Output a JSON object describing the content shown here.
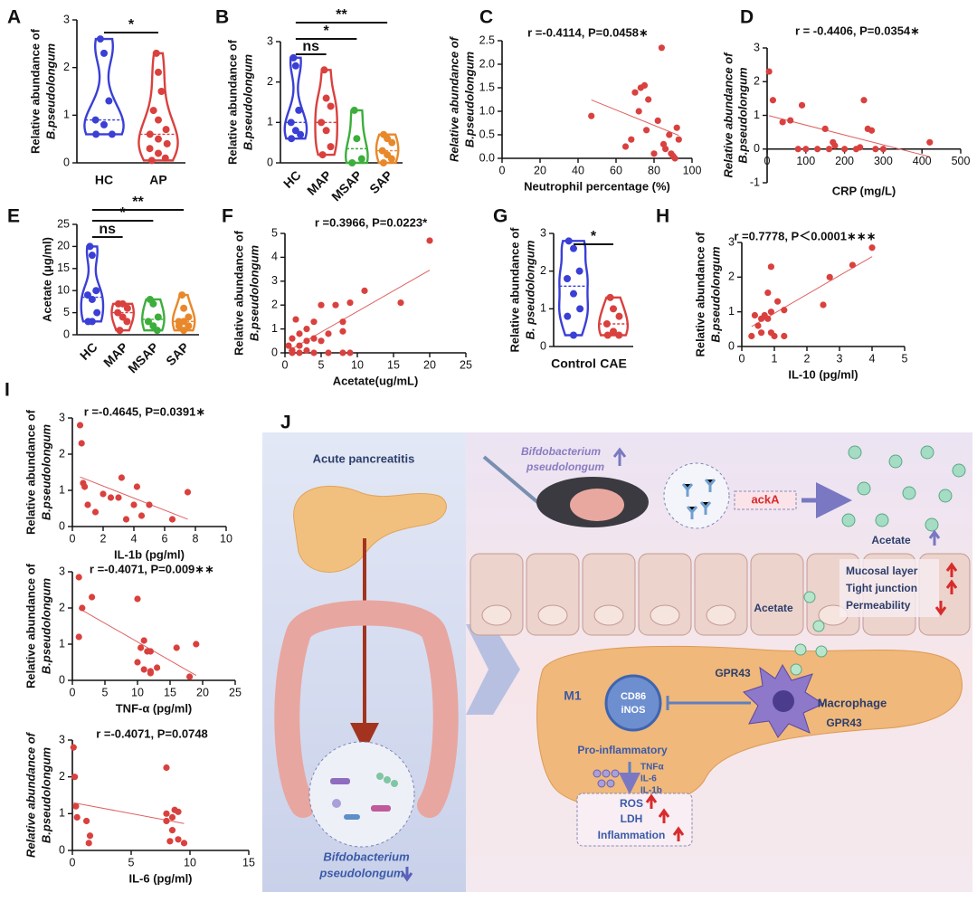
{
  "chart_data": [
    {
      "type": "violin",
      "label": "A",
      "ylabel": [
        "Relative abundance of",
        "B.pseudolongum"
      ],
      "categories": [
        "HC",
        "AP"
      ],
      "colors": [
        "#3a3fd6",
        "#d9413e"
      ],
      "values": [
        [
          2.6,
          2.3,
          1.3,
          0.9,
          0.8,
          0.6,
          0.6
        ],
        [
          2.3,
          1.9,
          1.5,
          1.1,
          0.9,
          0.7,
          0.6,
          0.5,
          0.4,
          0.3,
          0.2,
          0.1,
          0.05
        ]
      ],
      "ylim": [
        0,
        3
      ],
      "yticks": [
        0,
        1,
        2,
        3
      ],
      "comparisons": [
        {
          "text": "*",
          "groups": [
            0,
            1
          ]
        }
      ]
    },
    {
      "type": "violin",
      "label": "B",
      "ylabel": [
        "Relative abundance of",
        "B.pseudolongum"
      ],
      "categories": [
        "HC",
        "MAP",
        "MSAP",
        "SAP"
      ],
      "colors": [
        "#3a3fd6",
        "#d9413e",
        "#3cae3c",
        "#e8882a"
      ],
      "values": [
        [
          2.6,
          2.4,
          1.3,
          1.0,
          0.8,
          0.7,
          0.6
        ],
        [
          2.3,
          1.6,
          1.4,
          1.0,
          0.8,
          0.4,
          0.2
        ],
        [
          1.3,
          0.6,
          0.1,
          0.0
        ],
        [
          0.7,
          0.6,
          0.5,
          0.3,
          0.2,
          0.1,
          0.0
        ]
      ],
      "ylim": [
        0,
        3
      ],
      "yticks": [
        0,
        1,
        2,
        3
      ],
      "comparisons": [
        {
          "text": "**",
          "groups": [
            0,
            3
          ]
        },
        {
          "text": "*",
          "groups": [
            0,
            2
          ]
        },
        {
          "text": "ns",
          "groups": [
            0,
            1
          ]
        }
      ]
    },
    {
      "type": "scatter",
      "label": "C",
      "title": "r =-0.4114, P=0.0458∗",
      "xlabel": "Neutrophil percentage (%)",
      "ylabel": [
        "Relative abundance of",
        "B.pseudolongum"
      ],
      "color": "#d9413e",
      "trendline": true,
      "x": [
        47,
        65,
        68,
        70,
        72,
        73,
        75,
        76,
        77,
        80,
        82,
        84,
        85,
        86,
        88,
        89,
        90,
        91,
        92,
        93
      ],
      "values": [
        0.9,
        0.25,
        0.4,
        1.4,
        1.0,
        1.5,
        1.55,
        0.6,
        1.25,
        0.1,
        0.8,
        2.35,
        0.3,
        0.2,
        0.5,
        0.1,
        0.05,
        0.0,
        0.65,
        0.4
      ],
      "xlim": [
        0,
        100
      ],
      "xticks": [
        0,
        20,
        40,
        60,
        80,
        100
      ],
      "ylim": [
        0,
        2.5
      ],
      "yticks": [
        {
          "value": 0,
          "label": "0.0"
        },
        0.5,
        {
          "value": 1,
          "label": "1.0"
        },
        1.5,
        {
          "value": 2,
          "label": "2.0"
        },
        2.5
      ]
    },
    {
      "type": "scatter",
      "label": "D",
      "title": "r = -0.4406, P=0.0354∗",
      "xlabel": "CRP (mg/L)",
      "ylabel": [
        "Relative abundance of",
        "B.pseudolongum"
      ],
      "color": "#d9413e",
      "trendline": true,
      "x": [
        5,
        15,
        40,
        60,
        80,
        90,
        100,
        130,
        150,
        160,
        170,
        175,
        200,
        230,
        240,
        250,
        260,
        270,
        280,
        300,
        420
      ],
      "values": [
        2.3,
        1.45,
        0.8,
        0.85,
        0.0,
        1.3,
        0.0,
        0.0,
        0.6,
        0.0,
        0.2,
        0.1,
        0.0,
        0.0,
        0.05,
        1.45,
        0.6,
        0.55,
        0.0,
        0.0,
        0.2
      ],
      "xlim": [
        0,
        500
      ],
      "xticks": [
        0,
        100,
        200,
        300,
        400,
        500
      ],
      "ylim": [
        -1,
        3
      ],
      "yticks": [
        -1,
        0,
        1,
        2,
        3
      ]
    },
    {
      "type": "violin",
      "label": "E",
      "ylabel": [
        "Acetate (μg/ml)"
      ],
      "categories": [
        "HC",
        "MAP",
        "MSAP",
        "SAP"
      ],
      "colors": [
        "#3a3fd6",
        "#d9413e",
        "#3cae3c",
        "#e8882a"
      ],
      "values": [
        [
          20,
          18,
          10,
          9,
          8,
          5,
          3,
          3
        ],
        [
          7,
          7,
          6,
          5,
          4,
          3,
          1
        ],
        [
          8,
          7,
          4,
          3,
          2,
          1
        ],
        [
          9,
          6,
          4,
          3,
          3,
          2,
          2,
          1
        ]
      ],
      "ylim": [
        0,
        25
      ],
      "yticks": [
        0,
        5,
        10,
        15,
        20,
        25
      ],
      "comparisons": [
        {
          "text": "**",
          "groups": [
            0,
            3
          ]
        },
        {
          "text": "*",
          "groups": [
            0,
            2
          ]
        },
        {
          "text": "ns",
          "groups": [
            0,
            1
          ]
        }
      ]
    },
    {
      "type": "scatter",
      "label": "F",
      "title": "r =0.3966, P=0.0223*",
      "xlabel": "Acetate(ug/mL)",
      "ylabel": [
        "Relative abundance of",
        "B.pseudolongum"
      ],
      "color": "#d9413e",
      "trendline": true,
      "x": [
        20,
        16,
        11,
        9,
        8,
        8,
        7,
        6,
        5,
        5,
        4,
        4,
        3,
        3,
        2,
        2,
        1.5,
        1,
        1,
        0.5,
        6,
        4,
        8,
        9,
        3,
        2,
        1
      ],
      "values": [
        4.7,
        2.1,
        2.6,
        2.1,
        1.3,
        0.9,
        2.0,
        0.8,
        2.0,
        0.5,
        1.3,
        0.6,
        1.0,
        0.5,
        0.8,
        0.3,
        1.4,
        0.6,
        0.1,
        0.3,
        0,
        0,
        0,
        0,
        0.1,
        0,
        0
      ],
      "xlim": [
        0,
        25
      ],
      "xticks": [
        0,
        5,
        10,
        15,
        20,
        25
      ],
      "ylim": [
        0,
        5
      ],
      "yticks": [
        0,
        1,
        2,
        3,
        4,
        5
      ]
    },
    {
      "type": "violin",
      "label": "G",
      "ylabel": [
        "Relative abundance of",
        "B. pseudolongum"
      ],
      "categories": [
        "Control",
        "CAE"
      ],
      "colors": [
        "#3a3fd6",
        "#d9413e"
      ],
      "values": [
        [
          2.8,
          2.6,
          2.0,
          1.8,
          1.4,
          1.0,
          0.8,
          0.3
        ],
        [
          1.3,
          1.0,
          0.8,
          0.6,
          0.4,
          0.3,
          0.3
        ]
      ],
      "ylim": [
        0,
        3
      ],
      "yticks": [
        0,
        1,
        2,
        3
      ],
      "comparisons": [
        {
          "text": "*",
          "groups": [
            0,
            1
          ]
        }
      ]
    },
    {
      "type": "scatter",
      "label": "H",
      "title": "r =0.7778, P＜0.0001∗∗∗",
      "xlabel": "IL-10 (pg/ml)",
      "ylabel": [
        "Relative abundance of",
        "B.pseudolongum"
      ],
      "color": "#d9413e",
      "trendline": true,
      "x": [
        4,
        3.4,
        2.7,
        2.5,
        1.3,
        1.1,
        0.9,
        0.9,
        0.8,
        0.8,
        0.7,
        0.6,
        0.5,
        0.4,
        0.3,
        0.9,
        1.0,
        1.3,
        0.6
      ],
      "values": [
        2.85,
        2.35,
        2.0,
        1.2,
        1.05,
        1.3,
        2.3,
        1.0,
        0.8,
        1.55,
        0.9,
        0.8,
        0.6,
        0.9,
        0.3,
        0.4,
        0.3,
        0.3,
        0.4
      ],
      "xlim": [
        0,
        5
      ],
      "xticks": [
        0,
        1,
        2,
        3,
        4,
        5
      ],
      "ylim": [
        0,
        3
      ],
      "yticks": [
        0,
        1,
        2,
        3
      ]
    },
    {
      "type": "scatter",
      "label": "I",
      "title": "r =-0.4645, P=0.0391∗",
      "xlabel": "IL-1b (pg/ml)",
      "ylabel": [
        "Relative abundance of",
        "B.pseudolongum"
      ],
      "color": "#d9413e",
      "trendline": true,
      "x": [
        0.5,
        0.6,
        0.7,
        0.8,
        1,
        1.5,
        2,
        2.5,
        3,
        3.2,
        3.5,
        4,
        4.2,
        4.5,
        5,
        6.5,
        7.5
      ],
      "values": [
        2.8,
        2.3,
        1.2,
        1.1,
        0.6,
        0.4,
        0.9,
        0.8,
        0.8,
        1.35,
        0.2,
        0.6,
        1.1,
        0.3,
        0.6,
        0.2,
        0.95
      ],
      "xlim": [
        0,
        10
      ],
      "xticks": [
        0,
        2,
        4,
        6,
        8,
        10
      ],
      "ylim": [
        0,
        3
      ],
      "yticks": [
        0,
        1,
        2,
        3
      ]
    },
    {
      "type": "scatter",
      "title": "r =-0.4071, P=0.009∗∗",
      "xlabel": "TNF-α (pg/ml)",
      "ylabel": [
        "Relative abundance of",
        "B.pseudolongum"
      ],
      "color": "#d9413e",
      "trendline": true,
      "x": [
        1,
        1.5,
        3,
        1,
        10,
        10,
        10.5,
        11,
        11,
        11.5,
        12,
        12,
        12,
        13,
        16,
        18,
        19
      ],
      "values": [
        2.85,
        2.0,
        2.3,
        1.2,
        2.25,
        0.5,
        0.9,
        1.1,
        0.3,
        0.8,
        0.8,
        0.25,
        0.2,
        0.35,
        0.9,
        0.1,
        1.0
      ],
      "xlim": [
        0,
        25
      ],
      "xticks": [
        0,
        5,
        10,
        15,
        20,
        25
      ],
      "ylim": [
        0,
        3
      ],
      "yticks": [
        0,
        1,
        2,
        3
      ]
    },
    {
      "type": "scatter",
      "title": "r =-0.4071, P=0.0748",
      "xlabel": "IL-6 (pg/ml)",
      "ylabel": [
        "Relative abundance of",
        "B.pseudolongum"
      ],
      "color": "#d9413e",
      "trendline": true,
      "x": [
        0.1,
        0.2,
        0.3,
        0.4,
        1.2,
        1.5,
        1.4,
        8,
        8,
        8.5,
        8.7,
        8,
        8.5,
        9,
        9,
        9.5,
        8.3
      ],
      "values": [
        2.8,
        2.0,
        1.2,
        0.9,
        0.8,
        0.4,
        0.2,
        2.25,
        1.0,
        0.9,
        1.1,
        0.8,
        0.55,
        1.05,
        0.3,
        0.2,
        0.25
      ],
      "xlim": [
        0,
        15
      ],
      "xticks": [
        0,
        5,
        10,
        15
      ],
      "ylim": [
        0,
        3
      ],
      "yticks": [
        0,
        1,
        2,
        3
      ]
    }
  ],
  "diagram": {
    "label": "J",
    "left": {
      "title": "Acute pancreatitis",
      "bacterium": [
        "Bifdobacterium",
        "pseudolongum"
      ]
    },
    "right": {
      "bacterium": [
        "Bifdobacterium",
        "pseudolongum"
      ],
      "gene": "ackA",
      "acetate": "Acetate",
      "acetate_lumen": "Acetate",
      "barrier": [
        "Mucosal layer",
        "Tight junction",
        "Permeability"
      ],
      "receptor": "GPR43",
      "receptor2": "GPR43",
      "macrophage": "Macrophage",
      "m1": "M1",
      "markers": [
        "CD86",
        "iNOS"
      ],
      "state": "Pro-inflammatory",
      "cytokines": [
        "TNFα",
        "IL-6",
        "IL-1b"
      ],
      "outcomes": [
        "ROS",
        "LDH",
        "Inflammation"
      ]
    }
  }
}
